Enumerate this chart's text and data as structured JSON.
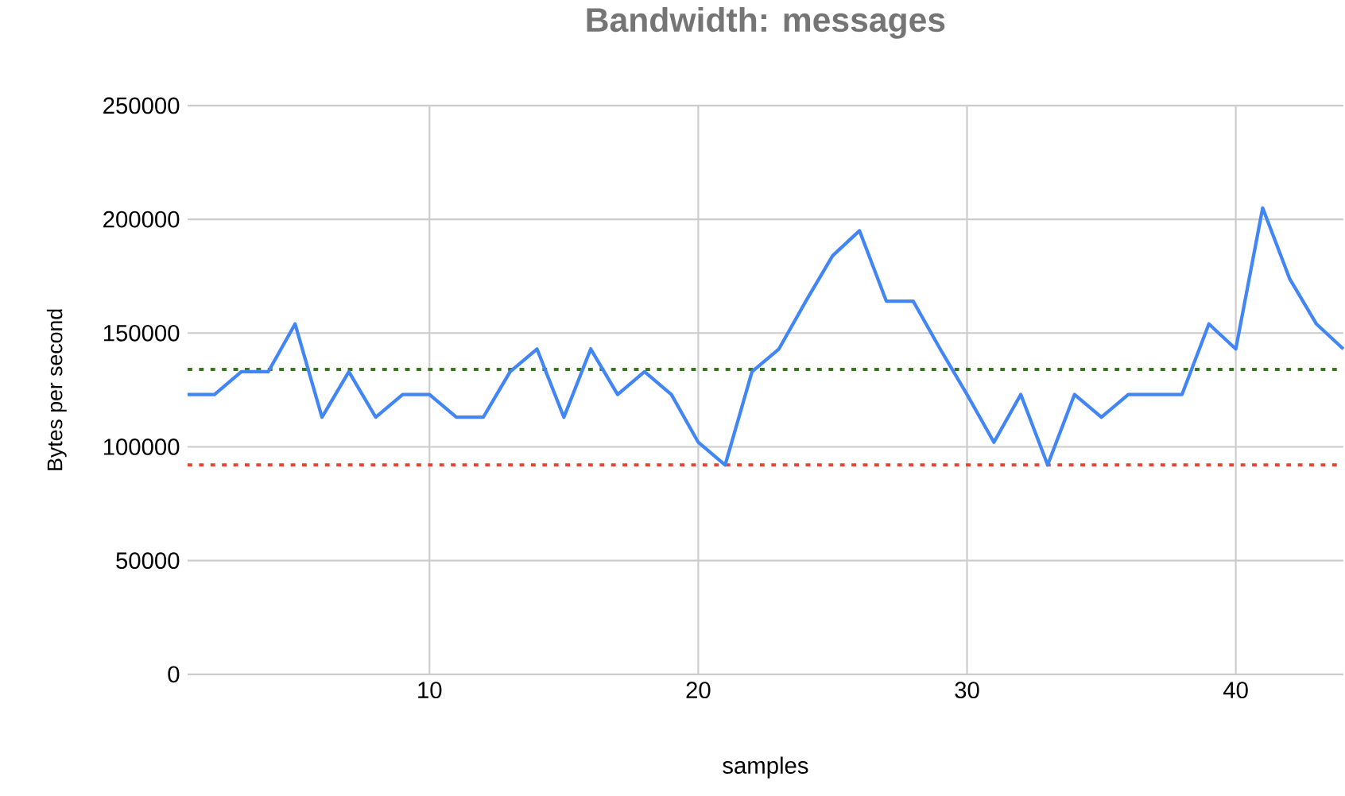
{
  "chart_data": {
    "type": "line",
    "title": "Bandwidth: messages",
    "xlabel": "samples",
    "ylabel": "Bytes per second",
    "x": [
      1,
      2,
      3,
      4,
      5,
      6,
      7,
      8,
      9,
      10,
      11,
      12,
      13,
      14,
      15,
      16,
      17,
      18,
      19,
      20,
      21,
      22,
      23,
      24,
      25,
      26,
      27,
      28,
      29,
      30,
      31,
      32,
      33,
      34,
      35,
      36,
      37,
      38,
      39,
      40,
      41,
      42,
      43,
      44
    ],
    "series": [
      {
        "color": "#4285f4",
        "values": [
          123000,
          123000,
          133000,
          133000,
          154000,
          113000,
          133000,
          113000,
          123000,
          123000,
          113000,
          113000,
          133000,
          143000,
          113000,
          143000,
          123000,
          133000,
          123000,
          102000,
          92000,
          133000,
          143000,
          164000,
          184000,
          195000,
          164000,
          164000,
          143000,
          123000,
          102000,
          123000,
          92000,
          123000,
          113000,
          123000,
          123000,
          123000,
          154000,
          143000,
          205000,
          174000,
          154000,
          143000
        ]
      }
    ],
    "xlim": [
      1,
      44
    ],
    "xticks": [
      10,
      20,
      30,
      40
    ],
    "ylim": [
      0,
      250000
    ],
    "yticks": [
      0,
      50000,
      100000,
      150000,
      200000,
      250000
    ],
    "grid": true,
    "ref_lines": [
      {
        "axis": "y",
        "value": 134000,
        "color": "#38761d",
        "line_style": "dotted"
      },
      {
        "axis": "y",
        "value": 92000,
        "color": "#ea4335",
        "line_style": "dotted"
      }
    ]
  }
}
